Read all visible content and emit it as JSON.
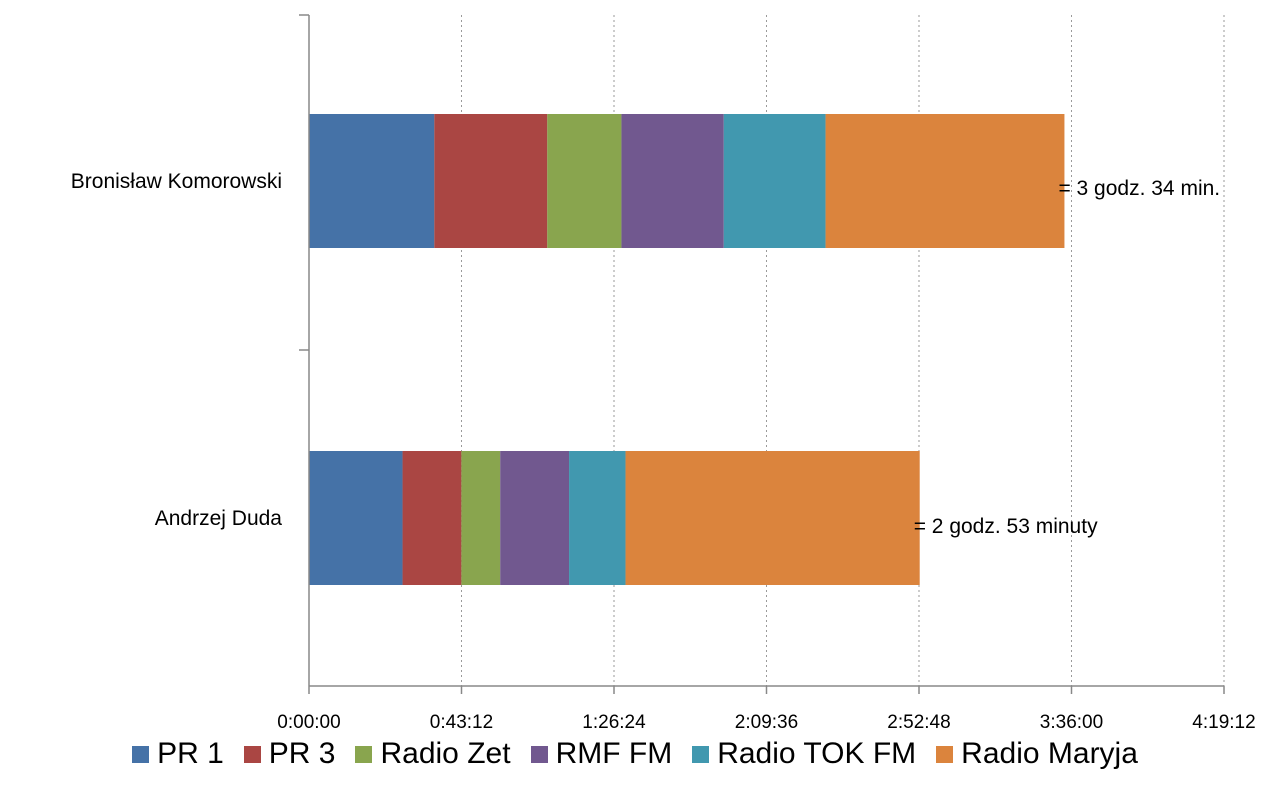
{
  "chart_data": {
    "type": "bar",
    "orientation": "horizontal",
    "stacked": true,
    "categories": [
      "Bronisław Komorowski",
      "Andrzej Duda"
    ],
    "series": [
      {
        "name": "PR 1",
        "color": "#4572A7",
        "values": [
          "0:35:30",
          "0:26:30"
        ]
      },
      {
        "name": "PR 3",
        "color": "#AA4643",
        "values": [
          "0:32:00",
          "0:16:40"
        ]
      },
      {
        "name": "Radio Zet",
        "color": "#89A54E",
        "values": [
          "0:21:00",
          "0:11:00"
        ]
      },
      {
        "name": "RMF FM",
        "color": "#71588F",
        "values": [
          "0:29:00",
          "0:19:30"
        ]
      },
      {
        "name": "Radio TOK FM",
        "color": "#4198AF",
        "values": [
          "0:28:50",
          "0:16:00"
        ]
      },
      {
        "name": "Radio Maryja",
        "color": "#DB843D",
        "values": [
          "1:07:40",
          "1:23:20"
        ]
      }
    ],
    "totals": [
      "= 3 godz. 34 min.",
      "= 2 godz. 53 minuty"
    ],
    "xlim": [
      "0:00:00",
      "4:19:12"
    ],
    "xticks": [
      "0:00:00",
      "0:43:12",
      "1:26:24",
      "2:09:36",
      "2:52:48",
      "3:36:00",
      "4:19:12"
    ],
    "grid": "vertical dotted",
    "legend_position": "bottom"
  }
}
